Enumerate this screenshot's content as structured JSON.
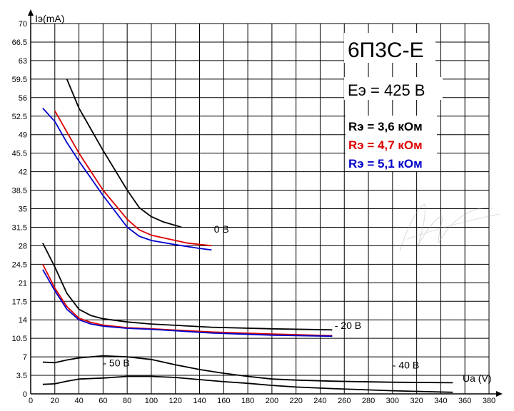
{
  "chart_data": {
    "type": "line",
    "title": "6П3С-Е",
    "subtitle": "Еэ = 425 В",
    "xlabel": "Ua (V)",
    "ylabel": "Iэ(mA)",
    "xlim": [
      0,
      380
    ],
    "ylim": [
      0,
      70
    ],
    "x_ticks": [
      "0",
      "20",
      "40",
      "60",
      "80",
      "100",
      "120",
      "140",
      "160",
      "180",
      "200",
      "220",
      "240",
      "260",
      "280",
      "300",
      "320",
      "340",
      "360",
      "380"
    ],
    "y_ticks": [
      "0",
      "3.5",
      "7",
      "10.5",
      "14",
      "17.5",
      "21",
      "24.5",
      "28",
      "31.5",
      "35",
      "38.5",
      "42",
      "45.5",
      "49",
      "52.5",
      "56",
      "59.5",
      "63",
      "66.5",
      "70"
    ],
    "grid": true,
    "legend": [
      {
        "label": "Rэ = 3,6 кОм",
        "color": "#000000"
      },
      {
        "label": "Rэ = 4,7 кОм",
        "color": "#dd0000"
      },
      {
        "label": "Rэ = 5,1 кОм",
        "color": "#0000cc"
      }
    ],
    "curve_labels": [
      {
        "text": "0 В",
        "x": 152,
        "y": 30.5
      },
      {
        "text": "- 20 В",
        "x": 252,
        "y": 12.3
      },
      {
        "text": "- 50 В",
        "x": 60,
        "y": 5.2
      },
      {
        "text": "- 40 В",
        "x": 300,
        "y": 4.8
      }
    ],
    "series": [
      {
        "color": "#000000",
        "points": [
          [
            30,
            59.5
          ],
          [
            40,
            54
          ],
          [
            60,
            46
          ],
          [
            80,
            38.5
          ],
          [
            90,
            35.2
          ],
          [
            100,
            33.5
          ],
          [
            110,
            32.5
          ],
          [
            125,
            31.5
          ]
        ]
      },
      {
        "color": "#dd0000",
        "points": [
          [
            20,
            53.5
          ],
          [
            30,
            49.5
          ],
          [
            40,
            45.5
          ],
          [
            60,
            38.5
          ],
          [
            80,
            33
          ],
          [
            90,
            31
          ],
          [
            100,
            30
          ],
          [
            120,
            29
          ],
          [
            130,
            28.5
          ],
          [
            150,
            28
          ]
        ]
      },
      {
        "color": "#0000cc",
        "points": [
          [
            10,
            54
          ],
          [
            20,
            51.5
          ],
          [
            30,
            47.5
          ],
          [
            40,
            44
          ],
          [
            60,
            37.5
          ],
          [
            80,
            31.5
          ],
          [
            90,
            29.8
          ],
          [
            100,
            29
          ],
          [
            120,
            28.2
          ],
          [
            140,
            27.5
          ],
          [
            150,
            27.2
          ]
        ]
      },
      {
        "color": "#000000",
        "points": [
          [
            10,
            28.5
          ],
          [
            20,
            24
          ],
          [
            30,
            19
          ],
          [
            40,
            16
          ],
          [
            50,
            14.8
          ],
          [
            60,
            14.2
          ],
          [
            80,
            13.6
          ],
          [
            100,
            13.2
          ],
          [
            150,
            12.6
          ],
          [
            200,
            12.3
          ],
          [
            250,
            12.1
          ]
        ]
      },
      {
        "color": "#dd0000",
        "points": [
          [
            10,
            24.5
          ],
          [
            20,
            20
          ],
          [
            30,
            16.5
          ],
          [
            40,
            14.3
          ],
          [
            50,
            13.5
          ],
          [
            60,
            13
          ],
          [
            80,
            12.5
          ],
          [
            100,
            12.3
          ],
          [
            150,
            11.7
          ],
          [
            200,
            11.3
          ],
          [
            250,
            11
          ]
        ]
      },
      {
        "color": "#0000cc",
        "points": [
          [
            10,
            23.5
          ],
          [
            20,
            19.5
          ],
          [
            30,
            16
          ],
          [
            40,
            14
          ],
          [
            50,
            13.2
          ],
          [
            60,
            12.8
          ],
          [
            80,
            12.4
          ],
          [
            100,
            12.2
          ],
          [
            150,
            11.5
          ],
          [
            200,
            11.1
          ],
          [
            250,
            10.9
          ]
        ]
      },
      {
        "color": "#000000",
        "points": [
          [
            10,
            6
          ],
          [
            20,
            5.9
          ],
          [
            30,
            6.4
          ],
          [
            40,
            6.8
          ],
          [
            50,
            7
          ],
          [
            60,
            7.2
          ],
          [
            80,
            7
          ],
          [
            100,
            6.5
          ],
          [
            120,
            5.5
          ],
          [
            140,
            4.6
          ],
          [
            160,
            3.9
          ],
          [
            180,
            3.3
          ],
          [
            200,
            2.8
          ],
          [
            220,
            2.6
          ],
          [
            250,
            2.4
          ],
          [
            300,
            2.2
          ],
          [
            350,
            2.1
          ]
        ]
      },
      {
        "color": "#000000",
        "points": [
          [
            10,
            1.8
          ],
          [
            20,
            1.9
          ],
          [
            30,
            2.4
          ],
          [
            40,
            2.8
          ],
          [
            60,
            3
          ],
          [
            80,
            3.3
          ],
          [
            100,
            3.3
          ],
          [
            120,
            3.1
          ],
          [
            140,
            2.7
          ],
          [
            160,
            2.3
          ],
          [
            180,
            2
          ],
          [
            200,
            1.6
          ],
          [
            220,
            1.3
          ],
          [
            250,
            1
          ],
          [
            300,
            0.6
          ],
          [
            350,
            0.3
          ]
        ]
      }
    ]
  },
  "watermark": {
    "text": "Marek"
  }
}
